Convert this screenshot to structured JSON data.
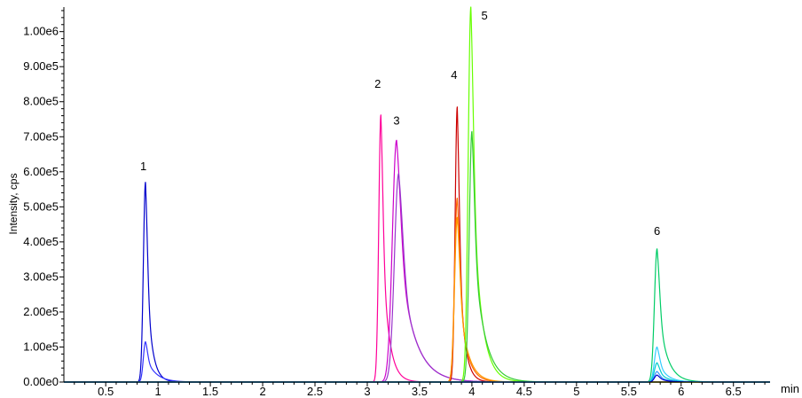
{
  "chart_data": {
    "type": "line",
    "title": "",
    "xlabel": "min",
    "ylabel": "Intensity, cps",
    "xlim": [
      0.1,
      6.85
    ],
    "ylim": [
      0,
      1070000
    ],
    "grid": false,
    "legend": "none",
    "x_ticks": [
      {
        "value": 0.5,
        "label": "0.5"
      },
      {
        "value": 1,
        "label": "1"
      },
      {
        "value": 1.5,
        "label": "1.5"
      },
      {
        "value": 2,
        "label": "2"
      },
      {
        "value": 2.5,
        "label": "2.5"
      },
      {
        "value": 3,
        "label": "3"
      },
      {
        "value": 3.5,
        "label": "3.5"
      },
      {
        "value": 4,
        "label": "4"
      },
      {
        "value": 4.5,
        "label": "4.5"
      },
      {
        "value": 5,
        "label": "5"
      },
      {
        "value": 5.5,
        "label": "5.5"
      },
      {
        "value": 6,
        "label": "6"
      },
      {
        "value": 6.5,
        "label": "6.5"
      }
    ],
    "y_ticks": [
      {
        "value": 0,
        "label": "0.00e0"
      },
      {
        "value": 100000,
        "label": "1.00e5"
      },
      {
        "value": 200000,
        "label": "2.00e5"
      },
      {
        "value": 300000,
        "label": "3.00e5"
      },
      {
        "value": 400000,
        "label": "4.00e5"
      },
      {
        "value": 500000,
        "label": "5.00e5"
      },
      {
        "value": 600000,
        "label": "6.00e5"
      },
      {
        "value": 700000,
        "label": "7.00e5"
      },
      {
        "value": 800000,
        "label": "8.00e5"
      },
      {
        "value": 900000,
        "label": "9.00e5"
      },
      {
        "value": 1000000,
        "label": "1.00e6"
      }
    ],
    "series": [
      {
        "color": "#0000cc",
        "peak_x": 0.88,
        "peak_y": 570000,
        "width_left": 0.02,
        "tail": 0.05
      },
      {
        "color": "#3333ff",
        "peak_x": 0.88,
        "peak_y": 115000,
        "width_left": 0.02,
        "tail": 0.09
      },
      {
        "color": "#ff0099",
        "peak_x": 3.13,
        "peak_y": 762000,
        "width_left": 0.02,
        "tail": 0.06
      },
      {
        "color": "#cc00cc",
        "peak_x": 3.28,
        "peak_y": 690000,
        "width_left": 0.04,
        "tail": 0.14
      },
      {
        "color": "#9933cc",
        "peak_x": 3.3,
        "peak_y": 595000,
        "width_left": 0.04,
        "tail": 0.14
      },
      {
        "color": "#cc0000",
        "peak_x": 3.86,
        "peak_y": 785000,
        "width_left": 0.02,
        "tail": 0.05
      },
      {
        "color": "#ff6600",
        "peak_x": 3.86,
        "peak_y": 525000,
        "width_left": 0.025,
        "tail": 0.07
      },
      {
        "color": "#ff9900",
        "peak_x": 3.86,
        "peak_y": 470000,
        "width_left": 0.025,
        "tail": 0.08
      },
      {
        "color": "#66ff00",
        "peak_x": 3.99,
        "peak_y": 1070000,
        "width_left": 0.025,
        "tail": 0.08
      },
      {
        "color": "#33cc33",
        "peak_x": 4.0,
        "peak_y": 715000,
        "width_left": 0.025,
        "tail": 0.1
      },
      {
        "color": "#00cc66",
        "peak_x": 5.77,
        "peak_y": 380000,
        "width_left": 0.025,
        "tail": 0.08
      },
      {
        "color": "#33ccff",
        "peak_x": 5.77,
        "peak_y": 100000,
        "width_left": 0.025,
        "tail": 0.08
      },
      {
        "color": "#00cccc",
        "peak_x": 5.77,
        "peak_y": 55000,
        "width_left": 0.025,
        "tail": 0.08
      },
      {
        "color": "#3399ff",
        "peak_x": 5.77,
        "peak_y": 30000,
        "width_left": 0.025,
        "tail": 0.08
      },
      {
        "color": "#0000cc",
        "peak_x": 5.77,
        "peak_y": 20000,
        "width_left": 0.025,
        "tail": 0.08
      }
    ],
    "annotations": [
      {
        "text": "1",
        "x": 0.86,
        "y": 605000
      },
      {
        "text": "2",
        "x": 3.1,
        "y": 840000
      },
      {
        "text": "3",
        "x": 3.28,
        "y": 735000
      },
      {
        "text": "4",
        "x": 3.83,
        "y": 865000
      },
      {
        "text": "5",
        "x": 4.12,
        "y": 1035000
      },
      {
        "text": "6",
        "x": 5.77,
        "y": 420000
      }
    ]
  }
}
